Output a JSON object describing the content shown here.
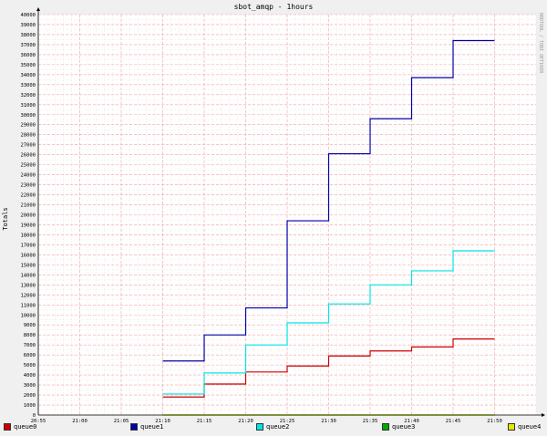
{
  "chart_data": {
    "type": "line",
    "title": "sbot_amqp - 1hours",
    "ylabel": "Totals",
    "xlabel": "",
    "credit": "RRDTOOL / TOBI OETIKER",
    "ylim": [
      0,
      40000
    ],
    "y_ticks": [
      "0",
      "1000",
      "2000",
      "3000",
      "4000",
      "5000",
      "6000",
      "7000",
      "8000",
      "9000",
      "10000",
      "11000",
      "12000",
      "13000",
      "14000",
      "15000",
      "16000",
      "17000",
      "18000",
      "19000",
      "20000",
      "21000",
      "22000",
      "23000",
      "24000",
      "25000",
      "26000",
      "27000",
      "28000",
      "29000",
      "30000",
      "31000",
      "32000",
      "33000",
      "34000",
      "35000",
      "36000",
      "37000",
      "38000",
      "39000",
      "40000"
    ],
    "x_ticks": [
      "20:55",
      "21:00",
      "21:05",
      "21:10",
      "21:15",
      "21:20",
      "21:25",
      "21:30",
      "21:35",
      "21:40",
      "21:45",
      "21:50"
    ],
    "x_range": [
      "20:55",
      "21:55"
    ],
    "grid": true,
    "legend": "bottom",
    "series": [
      {
        "name": "queue0",
        "color": "#cc0000",
        "points": [
          [
            "21:10",
            1800
          ],
          [
            "21:15",
            3100
          ],
          [
            "21:20",
            4300
          ],
          [
            "21:25",
            4900
          ],
          [
            "21:30",
            5900
          ],
          [
            "21:35",
            6400
          ],
          [
            "21:40",
            6800
          ],
          [
            "21:45",
            7600
          ],
          [
            "21:50",
            7600
          ]
        ]
      },
      {
        "name": "queue1",
        "color": "#0000aa",
        "points": [
          [
            "21:10",
            5400
          ],
          [
            "21:15",
            8000
          ],
          [
            "21:20",
            10700
          ],
          [
            "21:25",
            19400
          ],
          [
            "21:30",
            26100
          ],
          [
            "21:35",
            29600
          ],
          [
            "21:40",
            33700
          ],
          [
            "21:45",
            37400
          ],
          [
            "21:50",
            37400
          ]
        ]
      },
      {
        "name": "queue2",
        "color": "#00e5e5",
        "points": [
          [
            "21:10",
            2100
          ],
          [
            "21:15",
            4200
          ],
          [
            "21:20",
            7000
          ],
          [
            "21:25",
            9200
          ],
          [
            "21:30",
            11100
          ],
          [
            "21:35",
            13000
          ],
          [
            "21:40",
            14400
          ],
          [
            "21:45",
            16400
          ],
          [
            "21:50",
            16400
          ]
        ]
      },
      {
        "name": "queue3",
        "color": "#00aa00",
        "points": [
          [
            "21:10",
            0
          ],
          [
            "21:50",
            0
          ]
        ]
      },
      {
        "name": "queue4",
        "color": "#e5e500",
        "points": [
          [
            "21:10",
            0
          ],
          [
            "21:50",
            0
          ]
        ]
      }
    ]
  }
}
